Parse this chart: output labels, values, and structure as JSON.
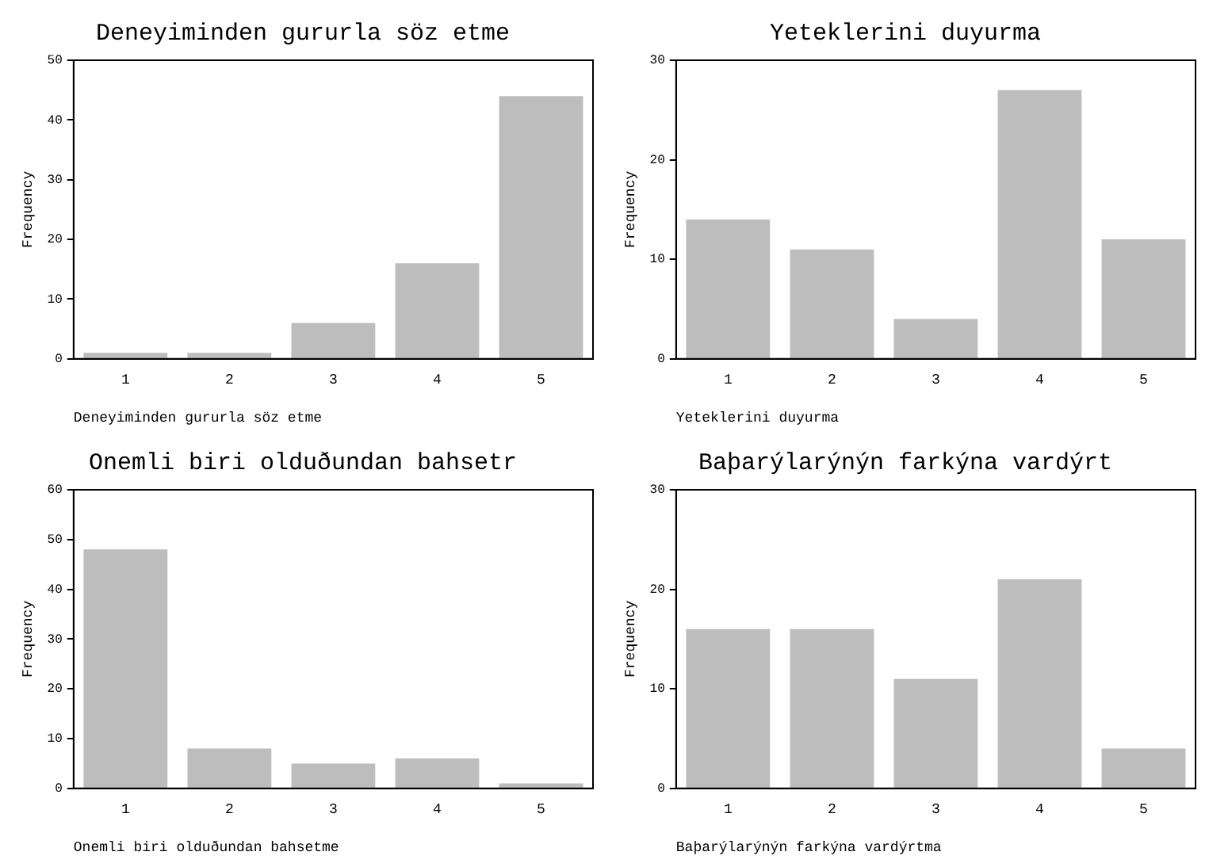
{
  "chart_data": [
    {
      "type": "bar",
      "title": "Deneyiminden gururla söz etme",
      "xlabel": "Deneyiminden gururla söz etme",
      "ylabel": "Frequency",
      "categories": [
        "1",
        "2",
        "3",
        "4",
        "5"
      ],
      "values": [
        1,
        1,
        6,
        16,
        44
      ],
      "color": "#bdbdbd",
      "ylim": [
        0,
        50
      ],
      "yticks": [
        0,
        10,
        20,
        30,
        40,
        50
      ],
      "grid": false,
      "legend": false
    },
    {
      "type": "bar",
      "title": "Yeteklerini duyurma",
      "xlabel": "Yeteklerini duyurma",
      "ylabel": "Frequency",
      "categories": [
        "1",
        "2",
        "3",
        "4",
        "5"
      ],
      "values": [
        14,
        11,
        4,
        27,
        12
      ],
      "color": "#bdbdbd",
      "ylim": [
        0,
        30
      ],
      "yticks": [
        0,
        10,
        20,
        30
      ],
      "grid": false,
      "legend": false
    },
    {
      "type": "bar",
      "title": "Onemli biri olduðundan bahsetr",
      "xlabel": "Onemli biri olduðundan bahsetme",
      "ylabel": "Frequency",
      "categories": [
        "1",
        "2",
        "3",
        "4",
        "5"
      ],
      "values": [
        48,
        8,
        5,
        6,
        1
      ],
      "color": "#bdbdbd",
      "ylim": [
        0,
        60
      ],
      "yticks": [
        0,
        10,
        20,
        30,
        40,
        50,
        60
      ],
      "grid": false,
      "legend": false
    },
    {
      "type": "bar",
      "title": "Baþarýlarýnýn farkýna vardýrt",
      "xlabel": "Baþarýlarýnýn farkýna vardýrtma",
      "ylabel": "Frequency",
      "categories": [
        "1",
        "2",
        "3",
        "4",
        "5"
      ],
      "values": [
        16,
        16,
        11,
        21,
        4
      ],
      "color": "#bdbdbd",
      "ylim": [
        0,
        30
      ],
      "yticks": [
        0,
        10,
        20,
        30
      ],
      "grid": false,
      "legend": false
    }
  ]
}
